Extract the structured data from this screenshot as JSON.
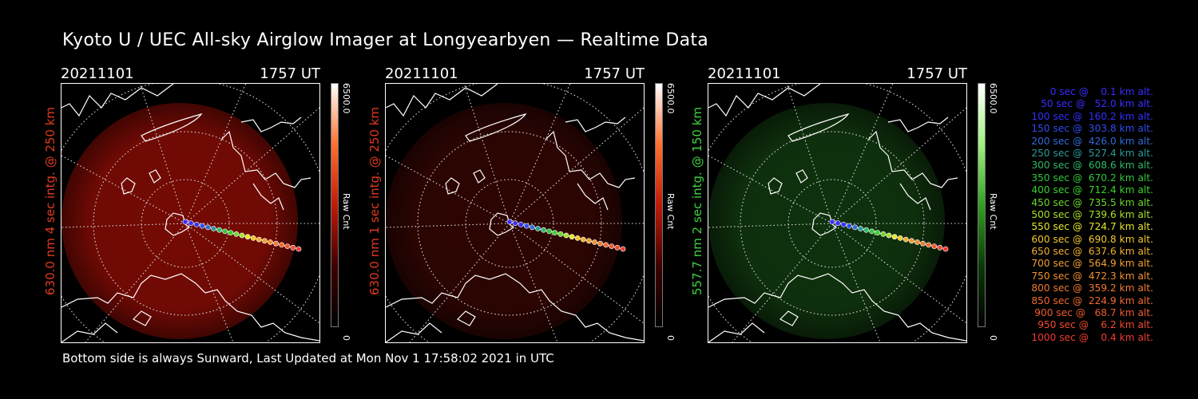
{
  "title": "Kyoto U / UEC All-sky Airglow Imager at Longyearbyen — Realtime Data",
  "footer": "Bottom side is always Sunward, Last Updated at Mon Nov  1 17:58:02 2021 in UTC",
  "panels": [
    {
      "date": "20211101",
      "time": "1757 UT",
      "ylabel": "630.0 nm 4 sec intg. @ 250 km",
      "label_color": "#e03a1e",
      "glow": "#8a0c05",
      "glow_opacity": 0.85,
      "cbar_max": "6500.0",
      "cbar_unit": "Raw Cnt",
      "cbar_min": "0",
      "cbar_colors": [
        "#ffffff",
        "#ff7030",
        "#c01a08",
        "#400000",
        "#000000"
      ]
    },
    {
      "date": "20211101",
      "time": "1757 UT",
      "ylabel": "630.0 nm 1 sec intg. @ 250 km",
      "label_color": "#e03a1e",
      "glow": "#3c0703",
      "glow_opacity": 0.75,
      "cbar_max": "6500.0",
      "cbar_unit": "Raw Cnt",
      "cbar_min": "0",
      "cbar_colors": [
        "#ffffff",
        "#ff7030",
        "#c01a08",
        "#400000",
        "#000000"
      ]
    },
    {
      "date": "20211101",
      "time": "1757 UT",
      "ylabel": "557.7 nm 2 sec intg. @ 150 km",
      "label_color": "#3ed23e",
      "glow": "#123a10",
      "glow_opacity": 0.85,
      "cbar_max": "6500.0",
      "cbar_unit": "Raw Cnt",
      "cbar_min": "0",
      "cbar_colors": [
        "#ffffff",
        "#a0f080",
        "#30a020",
        "#0a3a05",
        "#000000"
      ]
    }
  ],
  "legend": [
    {
      "text": "0 sec @    0.1 km alt.",
      "color": "#3a2cff"
    },
    {
      "text": "50 sec @   52.0 km alt.",
      "color": "#3a2cff"
    },
    {
      "text": "100 sec @  160.2 km alt.",
      "color": "#3030ff"
    },
    {
      "text": "150 sec @  303.8 km alt.",
      "color": "#2d4cf0"
    },
    {
      "text": "200 sec @  426.0 km alt.",
      "color": "#2f6ad8"
    },
    {
      "text": "250 sec @  527.4 km alt.",
      "color": "#2a9a9a"
    },
    {
      "text": "300 sec @  608.6 km alt.",
      "color": "#2fb96a"
    },
    {
      "text": "350 sec @  670.2 km alt.",
      "color": "#2fc83a"
    },
    {
      "text": "400 sec @  712.4 km alt.",
      "color": "#36d22a"
    },
    {
      "text": "450 sec @  735.5 km alt.",
      "color": "#6ad82a"
    },
    {
      "text": "500 sec @  739.6 km alt.",
      "color": "#a8e02a"
    },
    {
      "text": "550 sec @  724.7 km alt.",
      "color": "#e6e62a"
    },
    {
      "text": "600 sec @  690.8 km alt.",
      "color": "#f0c82a"
    },
    {
      "text": "650 sec @  637.6 km alt.",
      "color": "#f0b030"
    },
    {
      "text": "700 sec @  564.9 km alt.",
      "color": "#f0a030"
    },
    {
      "text": "750 sec @  472.3 km alt.",
      "color": "#f09030"
    },
    {
      "text": "800 sec @  359.2 km alt.",
      "color": "#f07a30"
    },
    {
      "text": "850 sec @  224.9 km alt.",
      "color": "#f06a30"
    },
    {
      "text": "900 sec @   68.7 km alt.",
      "color": "#f05a30"
    },
    {
      "text": "950 sec @    6.2 km alt.",
      "color": "#f04a30"
    },
    {
      "text": "1000 sec @    0.4 km alt.",
      "color": "#f03a30"
    }
  ],
  "trajectory_colors": [
    "#3a2cff",
    "#3a2cff",
    "#3030ff",
    "#2d4cf0",
    "#2f6ad8",
    "#2a9a9a",
    "#2fb96a",
    "#2fc83a",
    "#36d22a",
    "#6ad82a",
    "#a8e02a",
    "#e6e62a",
    "#f0c82a",
    "#f0b030",
    "#f0a030",
    "#f09030",
    "#f07a30",
    "#f06a30",
    "#f05a30",
    "#f04a30",
    "#f03a30"
  ]
}
